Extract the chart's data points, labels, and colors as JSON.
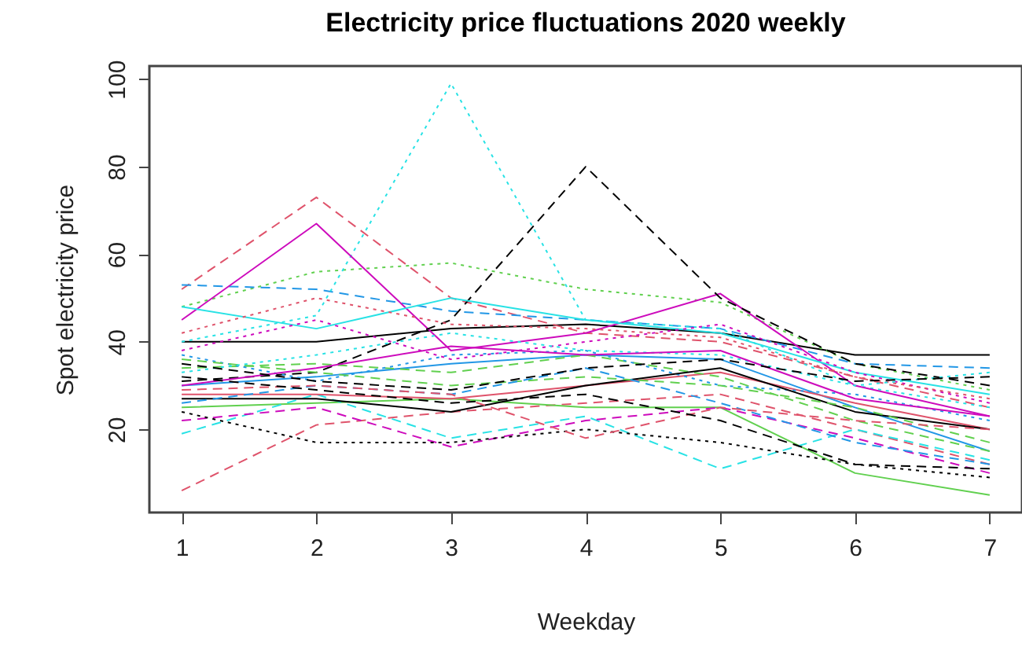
{
  "chart_data": {
    "type": "line",
    "title": "Electricity price fluctuations 2020 weekly",
    "xlabel": "Weekday",
    "ylabel": "Spot electricity price",
    "x": [
      1,
      2,
      3,
      4,
      5,
      6,
      7
    ],
    "xlim": [
      0.76,
      7.24
    ],
    "xticks": [
      1,
      2,
      3,
      4,
      5,
      6,
      7
    ],
    "ylim": [
      1,
      103
    ],
    "yticks": [
      20,
      40,
      60,
      80,
      100
    ],
    "grid": false,
    "marker": "none",
    "series": [
      {
        "color": "#000000",
        "line_style": "solid",
        "values": [
          40,
          40,
          43,
          44,
          42,
          37,
          37
        ]
      },
      {
        "color": "#DF536B",
        "line_style": "dashed",
        "values": [
          52,
          73,
          50,
          42,
          40,
          32,
          25
        ]
      },
      {
        "color": "#61D04F",
        "line_style": "dotted",
        "values": [
          48,
          56,
          58,
          52,
          49,
          35,
          29
        ]
      },
      {
        "color": "#2297E6",
        "line_style": "dashed",
        "values": [
          53,
          52,
          47,
          45,
          43,
          35,
          34
        ]
      },
      {
        "color": "#28E2E5",
        "line_style": "dotted",
        "values": [
          40,
          46,
          99,
          45,
          43,
          30,
          25
        ]
      },
      {
        "color": "#CD0BBC",
        "line_style": "solid",
        "values": [
          45,
          67,
          38,
          42,
          51,
          30,
          23
        ]
      },
      {
        "color": "#000000",
        "line_style": "dashed",
        "values": [
          31,
          33,
          45,
          80,
          50,
          35,
          30
        ]
      },
      {
        "color": "#DF536B",
        "line_style": "dashed",
        "values": [
          6,
          21,
          24,
          26,
          28,
          20,
          12
        ]
      },
      {
        "color": "#61D04F",
        "line_style": "solid",
        "values": [
          25,
          26,
          27,
          25,
          25,
          10,
          5
        ]
      },
      {
        "color": "#2297E6",
        "line_style": "solid",
        "values": [
          30,
          32,
          35,
          37,
          36,
          25,
          15
        ]
      },
      {
        "color": "#28E2E5",
        "line_style": "dashed",
        "values": [
          19,
          28,
          18,
          23,
          11,
          20,
          13
        ]
      },
      {
        "color": "#CD0BBC",
        "line_style": "dashed",
        "values": [
          22,
          25,
          16,
          22,
          25,
          18,
          10
        ]
      },
      {
        "color": "#000000",
        "line_style": "dotted",
        "values": [
          24,
          17,
          17,
          20,
          17,
          12,
          9
        ]
      },
      {
        "color": "#DF536B",
        "line_style": "solid",
        "values": [
          28,
          28,
          27,
          30,
          33,
          26,
          20
        ]
      },
      {
        "color": "#61D04F",
        "line_style": "dashed",
        "values": [
          34,
          35,
          33,
          37,
          32,
          22,
          15
        ]
      },
      {
        "color": "#2297E6",
        "line_style": "dotted",
        "values": [
          37,
          31,
          37,
          38,
          30,
          28,
          22
        ]
      },
      {
        "color": "#28E2E5",
        "line_style": "solid",
        "values": [
          48,
          43,
          50,
          45,
          42,
          33,
          28
        ]
      },
      {
        "color": "#CD0BBC",
        "line_style": "dotted",
        "values": [
          38,
          45,
          36,
          40,
          44,
          33,
          26
        ]
      },
      {
        "color": "#000000",
        "line_style": "solid",
        "values": [
          27,
          27,
          24,
          30,
          34,
          24,
          20
        ]
      },
      {
        "color": "#DF536B",
        "line_style": "dotted",
        "values": [
          42,
          50,
          44,
          43,
          41,
          32,
          27
        ]
      },
      {
        "color": "#61D04F",
        "line_style": "dashed",
        "values": [
          36,
          33,
          30,
          32,
          30,
          25,
          17
        ]
      },
      {
        "color": "#2297E6",
        "line_style": "dashed",
        "values": [
          26,
          30,
          28,
          34,
          26,
          17,
          12
        ]
      },
      {
        "color": "#28E2E5",
        "line_style": "dotted",
        "values": [
          33,
          37,
          42,
          38,
          37,
          30,
          33
        ]
      },
      {
        "color": "#CD0BBC",
        "line_style": "solid",
        "values": [
          30,
          34,
          39,
          37,
          38,
          27,
          23
        ]
      },
      {
        "color": "#000000",
        "line_style": "dashed",
        "values": [
          35,
          31,
          29,
          34,
          36,
          31,
          32
        ]
      },
      {
        "color": "#DF536B",
        "line_style": "dashed",
        "values": [
          29,
          30,
          28,
          18,
          25,
          22,
          20
        ]
      },
      {
        "color": "#000000",
        "line_style": "dashed",
        "values": [
          32,
          29,
          26,
          28,
          22,
          12,
          11
        ]
      }
    ]
  }
}
